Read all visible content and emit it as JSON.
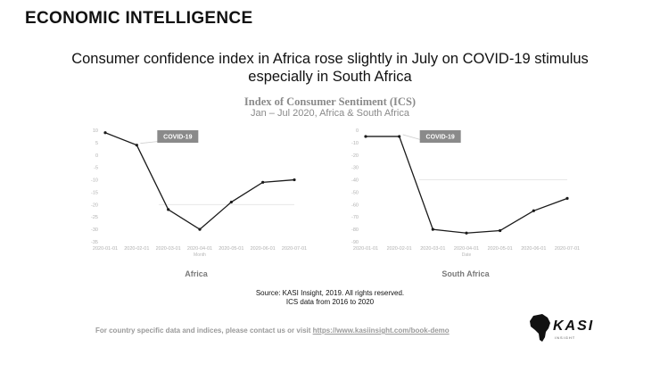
{
  "brand": "ECONOMIC INTELLIGENCE",
  "headline": "Consumer confidence index in Africa rose slightly in July on COVID-19 stimulus especially in South Africa",
  "chart_title": "Index of Consumer Sentiment (ICS)",
  "chart_subtitle": "Jan – Jul 2020, Africa & South Africa",
  "source_line1": "Source: KASI Insight, 2019. All rights reserved.",
  "source_line2": "ICS data from 2016 to 2020",
  "footer": {
    "text": "For country specific data and indices, please contact us or visit ",
    "link": "https://www.kasiinsight.com/book-demo"
  },
  "logo": {
    "text": "KASI",
    "sub": "INSIGHT"
  },
  "chart_data": [
    {
      "type": "line",
      "panel_label": "Africa",
      "xlabel": "Month",
      "covid_label": "COVID-19",
      "x": [
        "2020-01-01",
        "2020-02-01",
        "2020-03-01",
        "2020-04-01",
        "2020-05-01",
        "2020-06-01",
        "2020-07-01"
      ],
      "x_ticks": [
        "2020-01-01",
        "2020-02-01",
        "2020-03-01",
        "2020-04-01",
        "2020-05-01",
        "2020-06-01",
        "2020-07-01"
      ],
      "values": [
        9,
        4,
        -22,
        -30,
        -19,
        -11,
        -10
      ],
      "y_ticks": [
        10,
        5,
        0,
        -5,
        -10,
        -15,
        -20,
        -25,
        -30,
        -35
      ],
      "ylim": [
        -35,
        10
      ],
      "ref_line": -20,
      "grid": false
    },
    {
      "type": "line",
      "panel_label": "South Africa",
      "xlabel": "Date",
      "covid_label": "COVID-19",
      "x": [
        "2020-01-01",
        "2020-02-01",
        "2020-03-01",
        "2020-04-01",
        "2020-05-01",
        "2020-06-01",
        "2020-07-01"
      ],
      "x_ticks": [
        "2020-01-01",
        "2020-02-01",
        "2020-03-01",
        "2020-04-01",
        "2020-05-01",
        "2020-06-01",
        "2020-07-01"
      ],
      "values": [
        -5,
        -5,
        -80,
        -83,
        -81,
        -65,
        -55
      ],
      "y_ticks": [
        0,
        -10,
        -20,
        -30,
        -40,
        -50,
        -60,
        -70,
        -80,
        -90
      ],
      "ylim": [
        -90,
        0
      ],
      "ref_line": -40,
      "grid": false
    }
  ]
}
